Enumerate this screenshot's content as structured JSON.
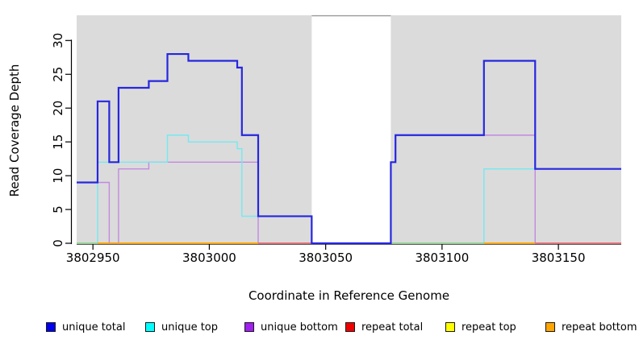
{
  "figure": {
    "xlabel": "Coordinate in Reference Genome",
    "ylabel": "Read Coverage Depth"
  },
  "legend": {
    "items": [
      {
        "label": "unique total",
        "color": "#0000EE"
      },
      {
        "label": "unique top",
        "color": "#00FFFF"
      },
      {
        "label": "unique bottom",
        "color": "#A020F0"
      },
      {
        "label": "repeat total",
        "color": "#EE0000"
      },
      {
        "label": "repeat top",
        "color": "#FFFF00"
      },
      {
        "label": "repeat bottom",
        "color": "#FFA500"
      }
    ]
  },
  "chart_data": {
    "type": "line",
    "subtype": "step",
    "title": "",
    "xlabel": "Coordinate in Reference Genome",
    "ylabel": "Read Coverage Depth",
    "xlim": [
      3802943,
      3803177
    ],
    "ylim": [
      0,
      33.7
    ],
    "x_ticks": [
      3802950,
      3803000,
      3803050,
      3803100,
      3803150
    ],
    "y_ticks": [
      0,
      5,
      10,
      15,
      20,
      25,
      30
    ],
    "grid": false,
    "legend_position": "bottom",
    "background_color": "#DBDBDB",
    "axis_color": "#000000",
    "gap_region": {
      "x_from": 3803044,
      "x_to": 3803078,
      "color": "#FFFFFF",
      "top_border_color": "#999999"
    },
    "series": [
      {
        "name": "unique total",
        "line_color": "#2626E0",
        "z": 10,
        "line_width": 2.2,
        "points": [
          [
            3802943,
            9
          ],
          [
            3802952,
            21
          ],
          [
            3802957,
            12
          ],
          [
            3802961,
            23
          ],
          [
            3802974,
            24
          ],
          [
            3802982,
            28
          ],
          [
            3802991,
            27
          ],
          [
            3803012,
            26
          ],
          [
            3803014,
            16
          ],
          [
            3803021,
            4
          ],
          [
            3803044,
            0
          ],
          [
            3803078,
            12
          ],
          [
            3803080,
            16
          ],
          [
            3803118,
            27
          ],
          [
            3803140,
            11
          ],
          [
            3803177,
            11
          ]
        ]
      },
      {
        "name": "unique top",
        "line_color": "#73E9F2",
        "z": 5,
        "line_width": 1.4,
        "points": [
          [
            3802943,
            0
          ],
          [
            3802952,
            12
          ],
          [
            3802982,
            16
          ],
          [
            3802991,
            15
          ],
          [
            3803012,
            14
          ],
          [
            3803014,
            4
          ],
          [
            3803044,
            0
          ],
          [
            3803118,
            11
          ],
          [
            3803177,
            11
          ]
        ]
      },
      {
        "name": "unique bottom",
        "line_color": "#C289DF",
        "z": 4,
        "line_width": 1.4,
        "points": [
          [
            3802943,
            9
          ],
          [
            3802957,
            0
          ],
          [
            3802961,
            11
          ],
          [
            3802974,
            12
          ],
          [
            3803021,
            0
          ],
          [
            3803078,
            12
          ],
          [
            3803080,
            16
          ],
          [
            3803140,
            0
          ],
          [
            3803177,
            0
          ]
        ]
      },
      {
        "name": "repeat total",
        "line_color": "#E03030",
        "z": 1,
        "line_width": 1.4,
        "points": [
          [
            3802943,
            0
          ],
          [
            3803177,
            0
          ]
        ]
      },
      {
        "name": "repeat top",
        "line_color": "#FFFF00",
        "z": 2,
        "line_width": 1.4,
        "points": [
          [
            3802943,
            0
          ],
          [
            3803177,
            0
          ]
        ]
      },
      {
        "name": "repeat bottom",
        "line_color": "#FFA500",
        "z": 3,
        "line_width": 1.4,
        "points": [
          [
            3802943,
            0
          ],
          [
            3803177,
            0
          ]
        ]
      }
    ],
    "baseline_segments": [
      {
        "from": 3802943,
        "to": 3802952,
        "color": "#8FD49B"
      },
      {
        "from": 3802952,
        "to": 3803021,
        "color": "#FFA500"
      },
      {
        "from": 3803021,
        "to": 3803044,
        "color": "#E06478"
      },
      {
        "from": 3803044,
        "to": 3803078,
        "color": "#5B54E8"
      },
      {
        "from": 3803078,
        "to": 3803118,
        "color": "#8FD49B"
      },
      {
        "from": 3803118,
        "to": 3803140,
        "color": "#FFA500"
      },
      {
        "from": 3803140,
        "to": 3803177,
        "color": "#E06478"
      }
    ]
  }
}
